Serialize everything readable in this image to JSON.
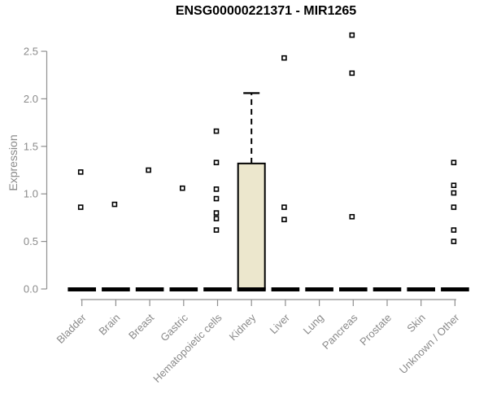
{
  "header": {
    "title": "ENSG00000221371 - MIR1265"
  },
  "chart_data": {
    "type": "boxplot",
    "title": "ENSG00000221371 - MIR1265",
    "xlabel": "",
    "ylabel": "Expression",
    "ylim": [
      0,
      2.75
    ],
    "yticks": [
      0.0,
      0.5,
      1.0,
      1.5,
      2.0,
      2.5
    ],
    "grid": false,
    "legend": null,
    "categories": [
      "Bladder",
      "Brain",
      "Breast",
      "Gastric",
      "Hematopoietic cells",
      "Kidney",
      "Liver",
      "Lung",
      "Pancreas",
      "Prostate",
      "Skin",
      "Unknown / Other"
    ],
    "boxes": [
      {
        "category": "Bladder",
        "median": 0,
        "q1": 0,
        "q3": 0,
        "whisker_low": 0,
        "whisker_high": 0,
        "outliers": [
          1.23,
          0.86
        ]
      },
      {
        "category": "Brain",
        "median": 0,
        "q1": 0,
        "q3": 0,
        "whisker_low": 0,
        "whisker_high": 0,
        "outliers": [
          0.89
        ]
      },
      {
        "category": "Breast",
        "median": 0,
        "q1": 0,
        "q3": 0,
        "whisker_low": 0,
        "whisker_high": 0,
        "outliers": [
          1.25
        ]
      },
      {
        "category": "Gastric",
        "median": 0,
        "q1": 0,
        "q3": 0,
        "whisker_low": 0,
        "whisker_high": 0,
        "outliers": [
          1.06
        ]
      },
      {
        "category": "Hematopoietic cells",
        "median": 0,
        "q1": 0,
        "q3": 0,
        "whisker_low": 0,
        "whisker_high": 0,
        "outliers": [
          1.66,
          1.33,
          1.05,
          0.95,
          0.8,
          0.74,
          0.62
        ]
      },
      {
        "category": "Kidney",
        "median": 0,
        "q1": 0,
        "q3": 1.32,
        "whisker_low": 0,
        "whisker_high": 2.06,
        "outliers": []
      },
      {
        "category": "Liver",
        "median": 0,
        "q1": 0,
        "q3": 0,
        "whisker_low": 0,
        "whisker_high": 0,
        "outliers": [
          2.43,
          0.86,
          0.73
        ]
      },
      {
        "category": "Lung",
        "median": 0,
        "q1": 0,
        "q3": 0,
        "whisker_low": 0,
        "whisker_high": 0,
        "outliers": []
      },
      {
        "category": "Pancreas",
        "median": 0,
        "q1": 0,
        "q3": 0,
        "whisker_low": 0,
        "whisker_high": 0,
        "outliers": [
          2.67,
          2.27,
          0.76
        ]
      },
      {
        "category": "Prostate",
        "median": 0,
        "q1": 0,
        "q3": 0,
        "whisker_low": 0,
        "whisker_high": 0,
        "outliers": []
      },
      {
        "category": "Skin",
        "median": 0,
        "q1": 0,
        "q3": 0,
        "whisker_low": 0,
        "whisker_high": 0,
        "outliers": []
      },
      {
        "category": "Unknown / Other",
        "median": 0,
        "q1": 0,
        "q3": 0,
        "whisker_low": 0,
        "whisker_high": 0,
        "outliers": [
          1.33,
          1.09,
          1.01,
          0.86,
          0.62,
          0.5
        ]
      }
    ],
    "colors": {
      "box_fill": "#ECE7CD",
      "box_border": "#000000",
      "median": "#000000",
      "point_border": "#000000",
      "point_fill": "#ffffff",
      "axis_line": "#8f8f8f",
      "tick_text": "#8a8a8a",
      "title_text": "#000000",
      "background": "#ffffff"
    }
  }
}
